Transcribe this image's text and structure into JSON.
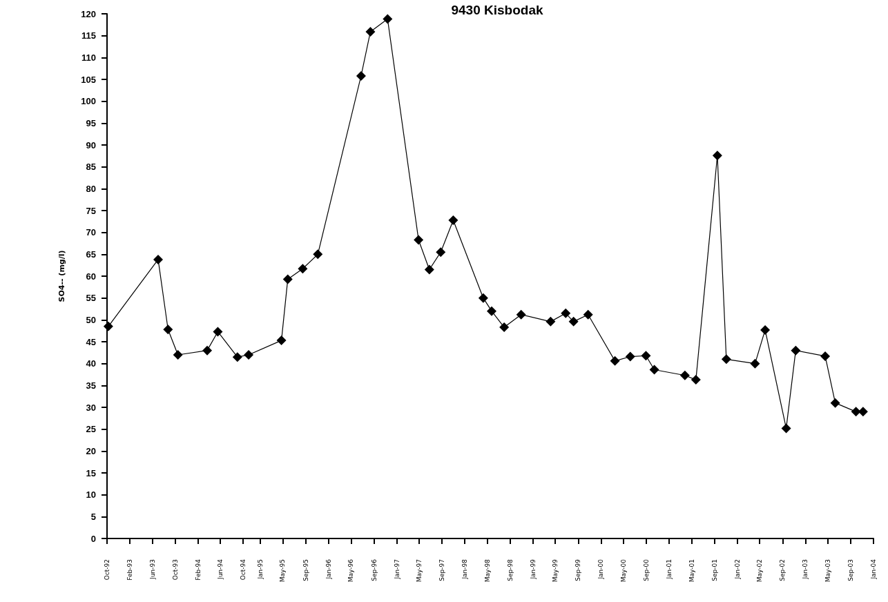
{
  "chart_data": {
    "type": "line",
    "title": "9430 Kisbodak",
    "ylabel": "SO4-- (mg/l)",
    "x": [
      "1992-10-08",
      "1993-07-02",
      "1993-08-24",
      "1993-10-16",
      "1994-03-22",
      "1994-05-18",
      "1994-08-31",
      "1994-10-30",
      "1995-04-24",
      "1995-05-28",
      "1995-08-16",
      "1995-11-05",
      "1996-06-24",
      "1996-08-13",
      "1996-11-13",
      "1997-04-28",
      "1997-06-25",
      "1997-08-25",
      "1997-10-31",
      "1998-04-10",
      "1998-05-25",
      "1998-07-31",
      "1998-10-30",
      "1999-04-06",
      "1999-06-26",
      "1999-08-07",
      "1999-10-24",
      "2000-03-16",
      "2000-06-06",
      "2000-08-29",
      "2000-10-13",
      "2001-03-26",
      "2001-05-24",
      "2001-09-16",
      "2001-11-03",
      "2002-04-06",
      "2002-05-30",
      "2002-09-20",
      "2002-11-10",
      "2003-04-17",
      "2003-06-10",
      "2003-09-29",
      "2003-11-06"
    ],
    "series": [
      {
        "color": "#000000",
        "values": [
          48.5,
          63.8,
          47.8,
          42,
          43,
          47.3,
          41.5,
          42,
          45.3,
          59.3,
          61.7,
          65,
          105.8,
          115.9,
          118.8,
          68.3,
          61.5,
          65.5,
          72.8,
          55,
          52,
          48.3,
          51.2,
          49.6,
          51.5,
          49.6,
          51.2,
          40.6,
          41.6,
          41.8,
          38.6,
          37.3,
          36.3,
          87.6,
          41,
          40,
          47.7,
          25.2,
          43,
          41.7,
          31,
          29,
          29
        ]
      }
    ],
    "xlim": [
      "1992-10-01",
      "2004-01-01"
    ],
    "xticks": [
      {
        "value": "1992-10-01",
        "label": "Oct-92"
      },
      {
        "value": "1993-02-01",
        "label": "Feb-93"
      },
      {
        "value": "1993-06-01",
        "label": "Jun-93"
      },
      {
        "value": "1993-10-01",
        "label": "Oct-93"
      },
      {
        "value": "1994-02-01",
        "label": "Feb-94"
      },
      {
        "value": "1994-06-01",
        "label": "Jun-94"
      },
      {
        "value": "1994-10-01",
        "label": "Oct-94"
      },
      {
        "value": "1995-01-01",
        "label": "Jan-95"
      },
      {
        "value": "1995-05-01",
        "label": "May-95"
      },
      {
        "value": "1995-09-01",
        "label": "Sep-95"
      },
      {
        "value": "1996-01-01",
        "label": "Jan-96"
      },
      {
        "value": "1996-05-01",
        "label": "May-96"
      },
      {
        "value": "1996-09-01",
        "label": "Sep-96"
      },
      {
        "value": "1997-01-01",
        "label": "Jan-97"
      },
      {
        "value": "1997-05-01",
        "label": "May-97"
      },
      {
        "value": "1997-09-01",
        "label": "Sep-97"
      },
      {
        "value": "1998-01-01",
        "label": "Jan-98"
      },
      {
        "value": "1998-05-01",
        "label": "May-98"
      },
      {
        "value": "1998-09-01",
        "label": "Sep-98"
      },
      {
        "value": "1999-01-01",
        "label": "Jan-99"
      },
      {
        "value": "1999-05-01",
        "label": "May-99"
      },
      {
        "value": "1999-09-01",
        "label": "Sep-99"
      },
      {
        "value": "2000-01-01",
        "label": "Jan-00"
      },
      {
        "value": "2000-05-01",
        "label": "May-00"
      },
      {
        "value": "2000-09-01",
        "label": "Sep-00"
      },
      {
        "value": "2001-01-01",
        "label": "Jan-01"
      },
      {
        "value": "2001-05-01",
        "label": "May-01"
      },
      {
        "value": "2001-09-01",
        "label": "Sep-01"
      },
      {
        "value": "2002-01-01",
        "label": "Jan-02"
      },
      {
        "value": "2002-05-01",
        "label": "May-02"
      },
      {
        "value": "2002-09-01",
        "label": "Sep-02"
      },
      {
        "value": "2003-01-01",
        "label": "Jan-03"
      },
      {
        "value": "2003-05-01",
        "label": "May-03"
      },
      {
        "value": "2003-09-01",
        "label": "Sep-03"
      },
      {
        "value": "2004-01-01",
        "label": "Jan-04"
      }
    ],
    "ylim": [
      0,
      120
    ],
    "yticks": [
      0,
      5,
      10,
      15,
      20,
      25,
      30,
      35,
      40,
      45,
      50,
      55,
      60,
      65,
      70,
      75,
      80,
      85,
      90,
      95,
      100,
      105,
      110,
      115,
      120
    ],
    "marker": "diamond",
    "line_style": "solid",
    "grid": false
  }
}
